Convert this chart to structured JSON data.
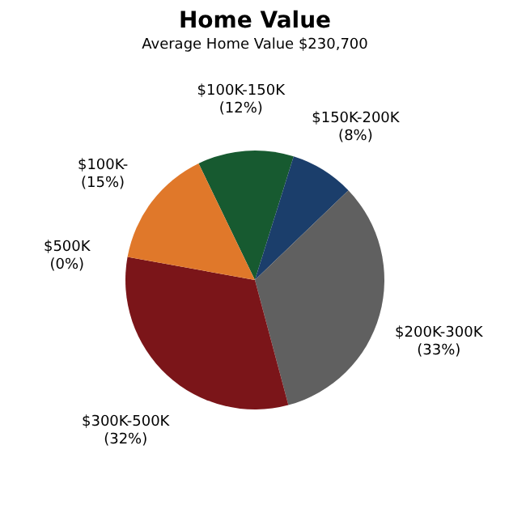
{
  "chart_data": {
    "type": "pie",
    "title": "Home Value",
    "subtitle": "Average Home Value  $230,700",
    "categories": [
      "$100K-150K",
      "$150K-200K",
      "$200K-300K",
      "$300K-500K",
      "$500K",
      "$100K-"
    ],
    "values": [
      12,
      8,
      33,
      32,
      0,
      15
    ],
    "value_labels": [
      "(12%)",
      "(8%)",
      "(33%)",
      "(32%)",
      "(0%)",
      "(15%)"
    ],
    "colors": [
      "#175a30",
      "#1b3e6b",
      "#606060",
      "#7b1519",
      "#9a2a2a",
      "#e0782a"
    ],
    "legend": false
  }
}
